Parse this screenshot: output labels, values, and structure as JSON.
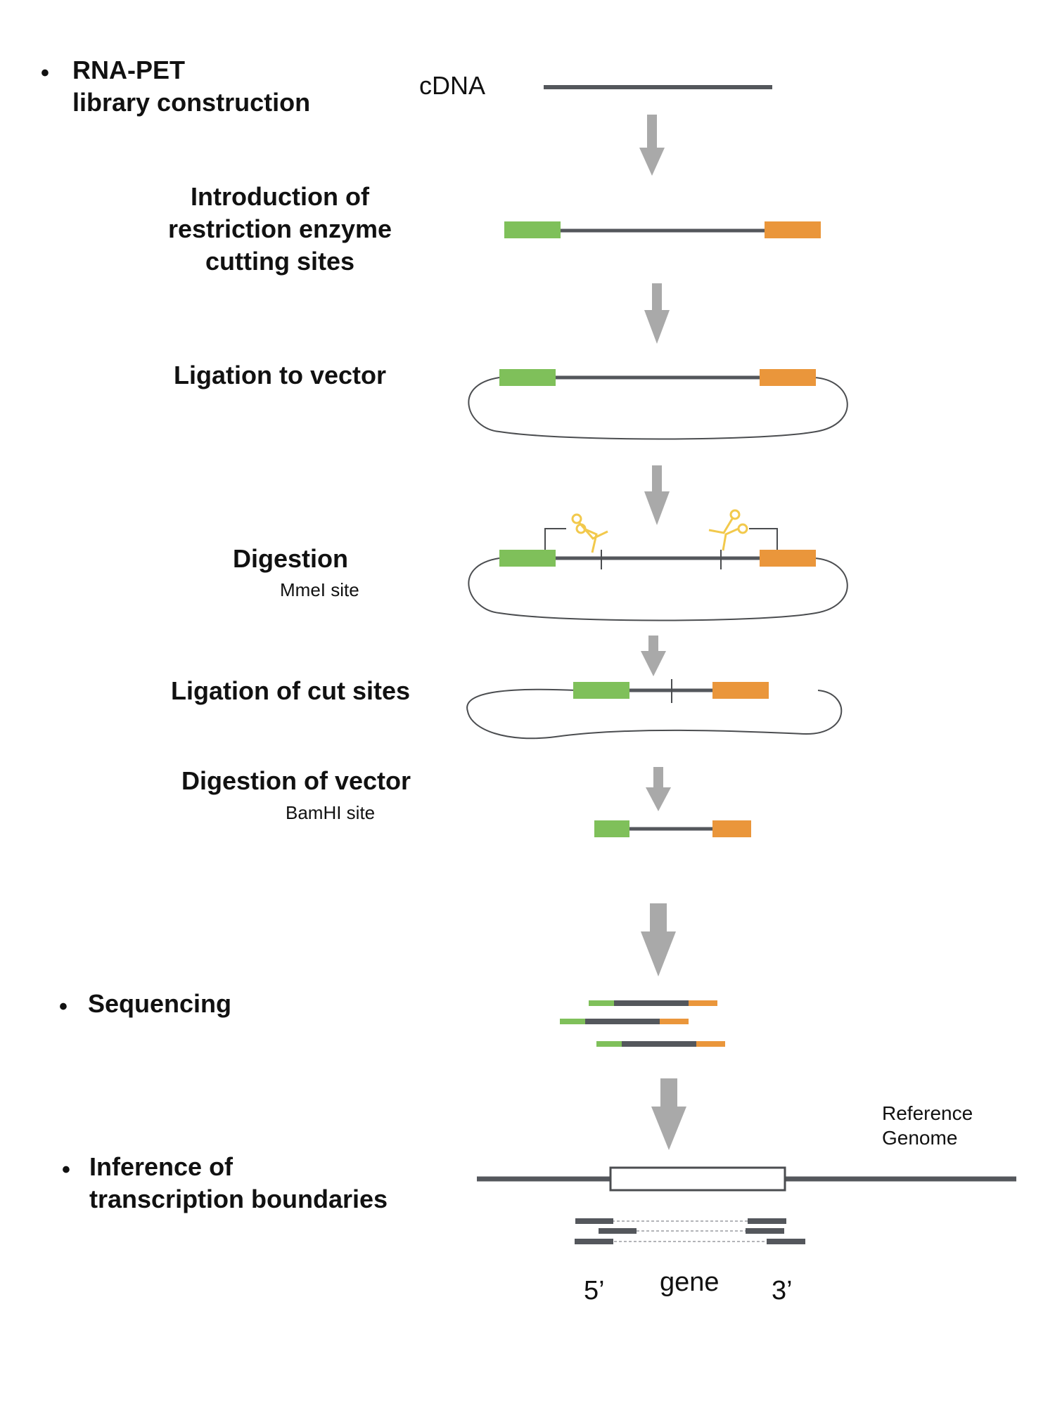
{
  "colors": {
    "strand": "#54575c",
    "green": "#7fc05a",
    "orange": "#ea963b",
    "arrow": "#a9a9a9",
    "loop": "#4b4d50",
    "scissors": "#f2c94c",
    "dashed": "#9a9ca0"
  },
  "sections": {
    "library": {
      "bullet": "•",
      "line1": "RNA-PET",
      "line2": "library construction"
    },
    "sequencing": {
      "bullet": "•",
      "label": "Sequencing"
    },
    "inference": {
      "bullet": "•",
      "line1": "Inference of",
      "line2": "transcription boundaries"
    }
  },
  "steps": {
    "cdna": "cDNA",
    "intro": {
      "line1": "Introduction of",
      "line2": "restriction enzyme",
      "line3": "cutting sites"
    },
    "ligation_vector": "Ligation to vector",
    "digestion": {
      "title": "Digestion",
      "sub": "MmeI site"
    },
    "ligation_cut": "Ligation of cut sites",
    "digestion_vector": {
      "title": "Digestion of vector",
      "sub": "BamHI site"
    }
  },
  "genome": {
    "reference": "Reference",
    "genome": "Genome",
    "five_prime": "5’",
    "gene": "gene",
    "three_prime": "3’"
  },
  "icons": [
    "scissors-icon",
    "arrow-down-icon"
  ]
}
